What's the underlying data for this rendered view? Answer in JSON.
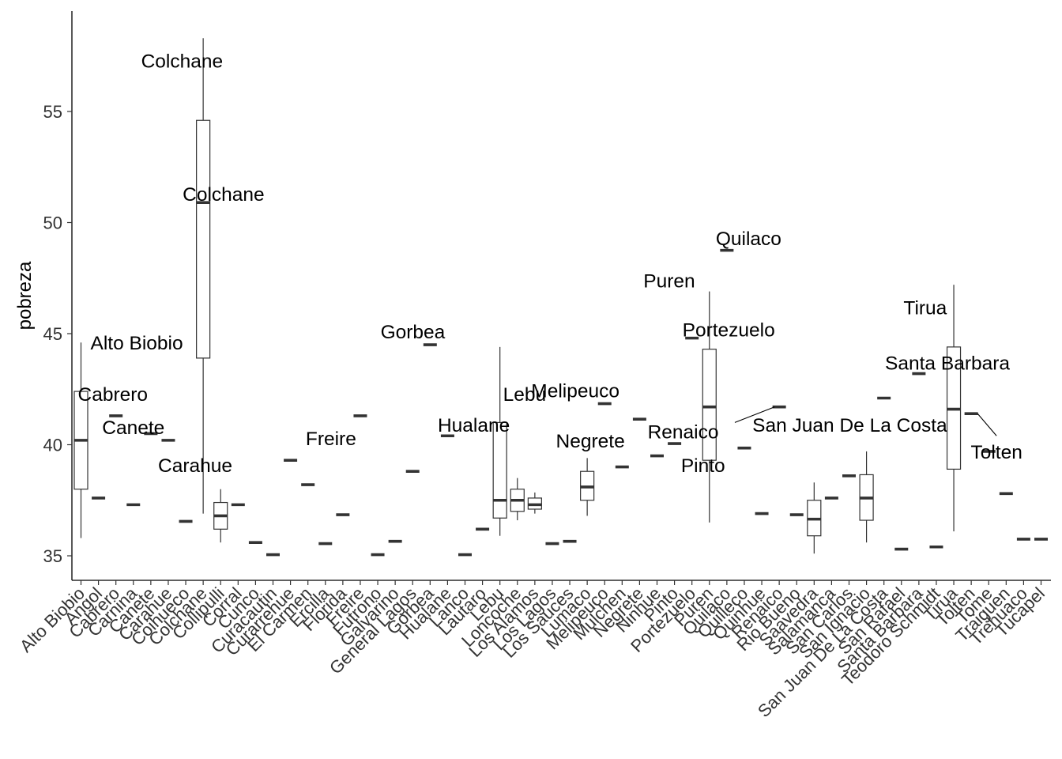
{
  "chart_data": {
    "type": "boxplot",
    "title": "",
    "xlabel": "",
    "ylabel": "pobreza",
    "ylim": [
      33.9,
      59.7
    ],
    "yticks": [
      35,
      40,
      45,
      50,
      55
    ],
    "grid": false,
    "legend": "none",
    "categories": [
      "Alto Biobio",
      "Angol",
      "Cabrero",
      "Carnina",
      "Canete",
      "Carahue",
      "Coihueco",
      "Colchane",
      "Collipulli",
      "Corral",
      "Cunco",
      "Curacautin",
      "Curarrehue",
      "El Carmen",
      "Ercilla",
      "Florida",
      "Freire",
      "Futrono",
      "Galvarino",
      "General Lagos",
      "Gorbea",
      "Hualane",
      "Lanco",
      "Lautaro",
      "Lebu",
      "Loncoche",
      "Los Alamos",
      "Los Lagos",
      "Los Sauces",
      "Lumaco",
      "Melipeuco",
      "Mulchen",
      "Negrete",
      "Ninhue",
      "Pinto",
      "Portezuelo",
      "Puren",
      "Quilaco",
      "Quilleco",
      "Quinhue",
      "Renaico",
      "Rio Bueno",
      "Saavedra",
      "Salamanca",
      "San Carlos",
      "San Ignacio",
      "San Juan De La Costa",
      "San Rafael",
      "Santa Barbara",
      "Teodoro Schmidt",
      "Tirua",
      "Tolten",
      "Tome",
      "Traiguen",
      "Trehuaco",
      "Tucapel"
    ],
    "boxes": [
      {
        "min": 35.8,
        "q1": 38.0,
        "median": 40.2,
        "q3": 42.4,
        "max": 44.6
      },
      {
        "median": 37.6
      },
      {
        "median": 41.3
      },
      {
        "median": 37.3
      },
      {
        "median": 40.5
      },
      {
        "median": 40.2
      },
      {
        "median": 36.55
      },
      {
        "min": 36.9,
        "q1": 43.9,
        "median": 50.9,
        "q3": 54.6,
        "max": 58.3
      },
      {
        "min": 35.6,
        "q1": 36.2,
        "median": 36.8,
        "q3": 37.4,
        "max": 38.0
      },
      {
        "median": 37.3
      },
      {
        "median": 35.6
      },
      {
        "median": 35.05
      },
      {
        "median": 39.3
      },
      {
        "median": 38.2
      },
      {
        "median": 35.55
      },
      {
        "median": 36.85
      },
      {
        "median": 41.3
      },
      {
        "median": 35.05
      },
      {
        "median": 35.65
      },
      {
        "median": 38.8
      },
      {
        "median": 44.5
      },
      {
        "median": 40.4
      },
      {
        "median": 35.05
      },
      {
        "median": 36.2
      },
      {
        "min": 35.9,
        "q1": 36.7,
        "median": 37.5,
        "q3": 41.0,
        "max": 44.4
      },
      {
        "min": 36.6,
        "q1": 37.0,
        "median": 37.5,
        "q3": 38.0,
        "max": 38.5
      },
      {
        "min": 36.9,
        "q1": 37.1,
        "median": 37.3,
        "q3": 37.6,
        "max": 37.85
      },
      {
        "median": 35.55
      },
      {
        "median": 35.65
      },
      {
        "min": 36.8,
        "q1": 37.5,
        "median": 38.1,
        "q3": 38.8,
        "max": 39.4
      },
      {
        "median": 41.85
      },
      {
        "median": 39.0
      },
      {
        "median": 41.15
      },
      {
        "median": 39.5
      },
      {
        "median": 40.05
      },
      {
        "median": 44.8
      },
      {
        "min": 36.5,
        "q1": 39.3,
        "median": 41.7,
        "q3": 44.3,
        "max": 46.9
      },
      {
        "median": 48.75
      },
      {
        "median": 39.85
      },
      {
        "median": 36.9
      },
      {
        "median": 41.7
      },
      {
        "median": 36.85
      },
      {
        "min": 35.1,
        "q1": 35.9,
        "median": 36.65,
        "q3": 37.5,
        "max": 38.3
      },
      {
        "median": 37.6
      },
      {
        "median": 38.6
      },
      {
        "min": 35.6,
        "q1": 36.6,
        "median": 37.6,
        "q3": 38.65,
        "max": 39.7
      },
      {
        "median": 42.1
      },
      {
        "median": 35.3
      },
      {
        "median": 43.2
      },
      {
        "median": 35.4
      },
      {
        "min": 36.1,
        "q1": 38.9,
        "median": 41.6,
        "q3": 44.4,
        "max": 47.2
      },
      {
        "median": 41.4
      },
      {
        "median": 39.7
      },
      {
        "median": 37.8
      },
      {
        "median": 35.75
      },
      {
        "median": 35.75
      }
    ],
    "annotations": [
      {
        "label": "Colchane",
        "x": "Colchane",
        "y": 57.3,
        "anchor": "end",
        "dx": 25
      },
      {
        "label": "Alto Biobio",
        "x": "Alto Biobio",
        "y": 44.6,
        "anchor": "start",
        "dx": 12
      },
      {
        "label": "Cabrero",
        "x": "Alto Biobio",
        "y": 42.3,
        "anchor": "start",
        "dx": -4
      },
      {
        "label": "Canete",
        "x": "Carnina",
        "y": 40.8,
        "anchor": "middle",
        "dx": 0
      },
      {
        "label": "Carahue",
        "x": "Coihueco",
        "y": 39.1,
        "anchor": "middle",
        "dx": 12
      },
      {
        "label": "Colchane",
        "x": "Colchane",
        "y": 51.3,
        "anchor": "start",
        "dx": -26
      },
      {
        "label": "Freire",
        "x": "Florida",
        "y": 40.3,
        "anchor": "middle",
        "dx": -15
      },
      {
        "label": "Gorbea",
        "x": "Gorbea",
        "y": 45.1,
        "anchor": "end",
        "dx": 19
      },
      {
        "label": "Hualane",
        "x": "Lautaro",
        "y": 40.9,
        "anchor": "middle",
        "dx": -11
      },
      {
        "label": "Lebu",
        "x": "Lebu",
        "y": 42.3,
        "anchor": "start",
        "dx": 4
      },
      {
        "label": "Melipeuco",
        "x": "Lumaco",
        "y": 42.45,
        "anchor": "middle",
        "dx": -15
      },
      {
        "label": "Negrete",
        "x": "Lumaco",
        "y": 40.2,
        "anchor": "middle",
        "dx": 4
      },
      {
        "label": "Puren",
        "x": "Portezuelo",
        "y": 47.4,
        "anchor": "end",
        "dx": 4
      },
      {
        "label": "Quilaco",
        "x": "Quilaco",
        "y": 49.3,
        "anchor": "start",
        "dx": -14
      },
      {
        "label": "Portezuelo",
        "x": "Puren",
        "y": 45.2,
        "anchor": "end",
        "dx": 83
      },
      {
        "label": "Renaico",
        "x": "Pinto",
        "y": 40.6,
        "anchor": "start",
        "dx": -34
      },
      {
        "label": "Pinto",
        "x": "Puren",
        "y": 39.1,
        "anchor": "middle",
        "dx": -8
      },
      {
        "label": "San Juan De La Costa",
        "x": "San Juan De La Costa",
        "y": 40.9,
        "anchor": "end",
        "dx": 80
      },
      {
        "label": "Tirua",
        "x": "Santa Barbara",
        "y": 46.2,
        "anchor": "middle",
        "dx": 8
      },
      {
        "label": "Santa Barbara",
        "x": "Tirua",
        "y": 43.7,
        "anchor": "middle",
        "dx": -8
      },
      {
        "label": "Tolten",
        "x": "Tolten",
        "y": 39.7,
        "anchor": "middle",
        "dx": 32
      }
    ],
    "leaders": [
      {
        "from": {
          "x": "Renaico",
          "y": 41.7,
          "dx": -6
        },
        "to": {
          "x": "Quilleco",
          "y": 41.0,
          "dx": -12
        }
      },
      {
        "from": {
          "x": "Tolten",
          "y": 41.4,
          "dx": 8
        },
        "to": {
          "x": "Tolten",
          "y": 40.4,
          "dx": 32
        }
      }
    ]
  }
}
